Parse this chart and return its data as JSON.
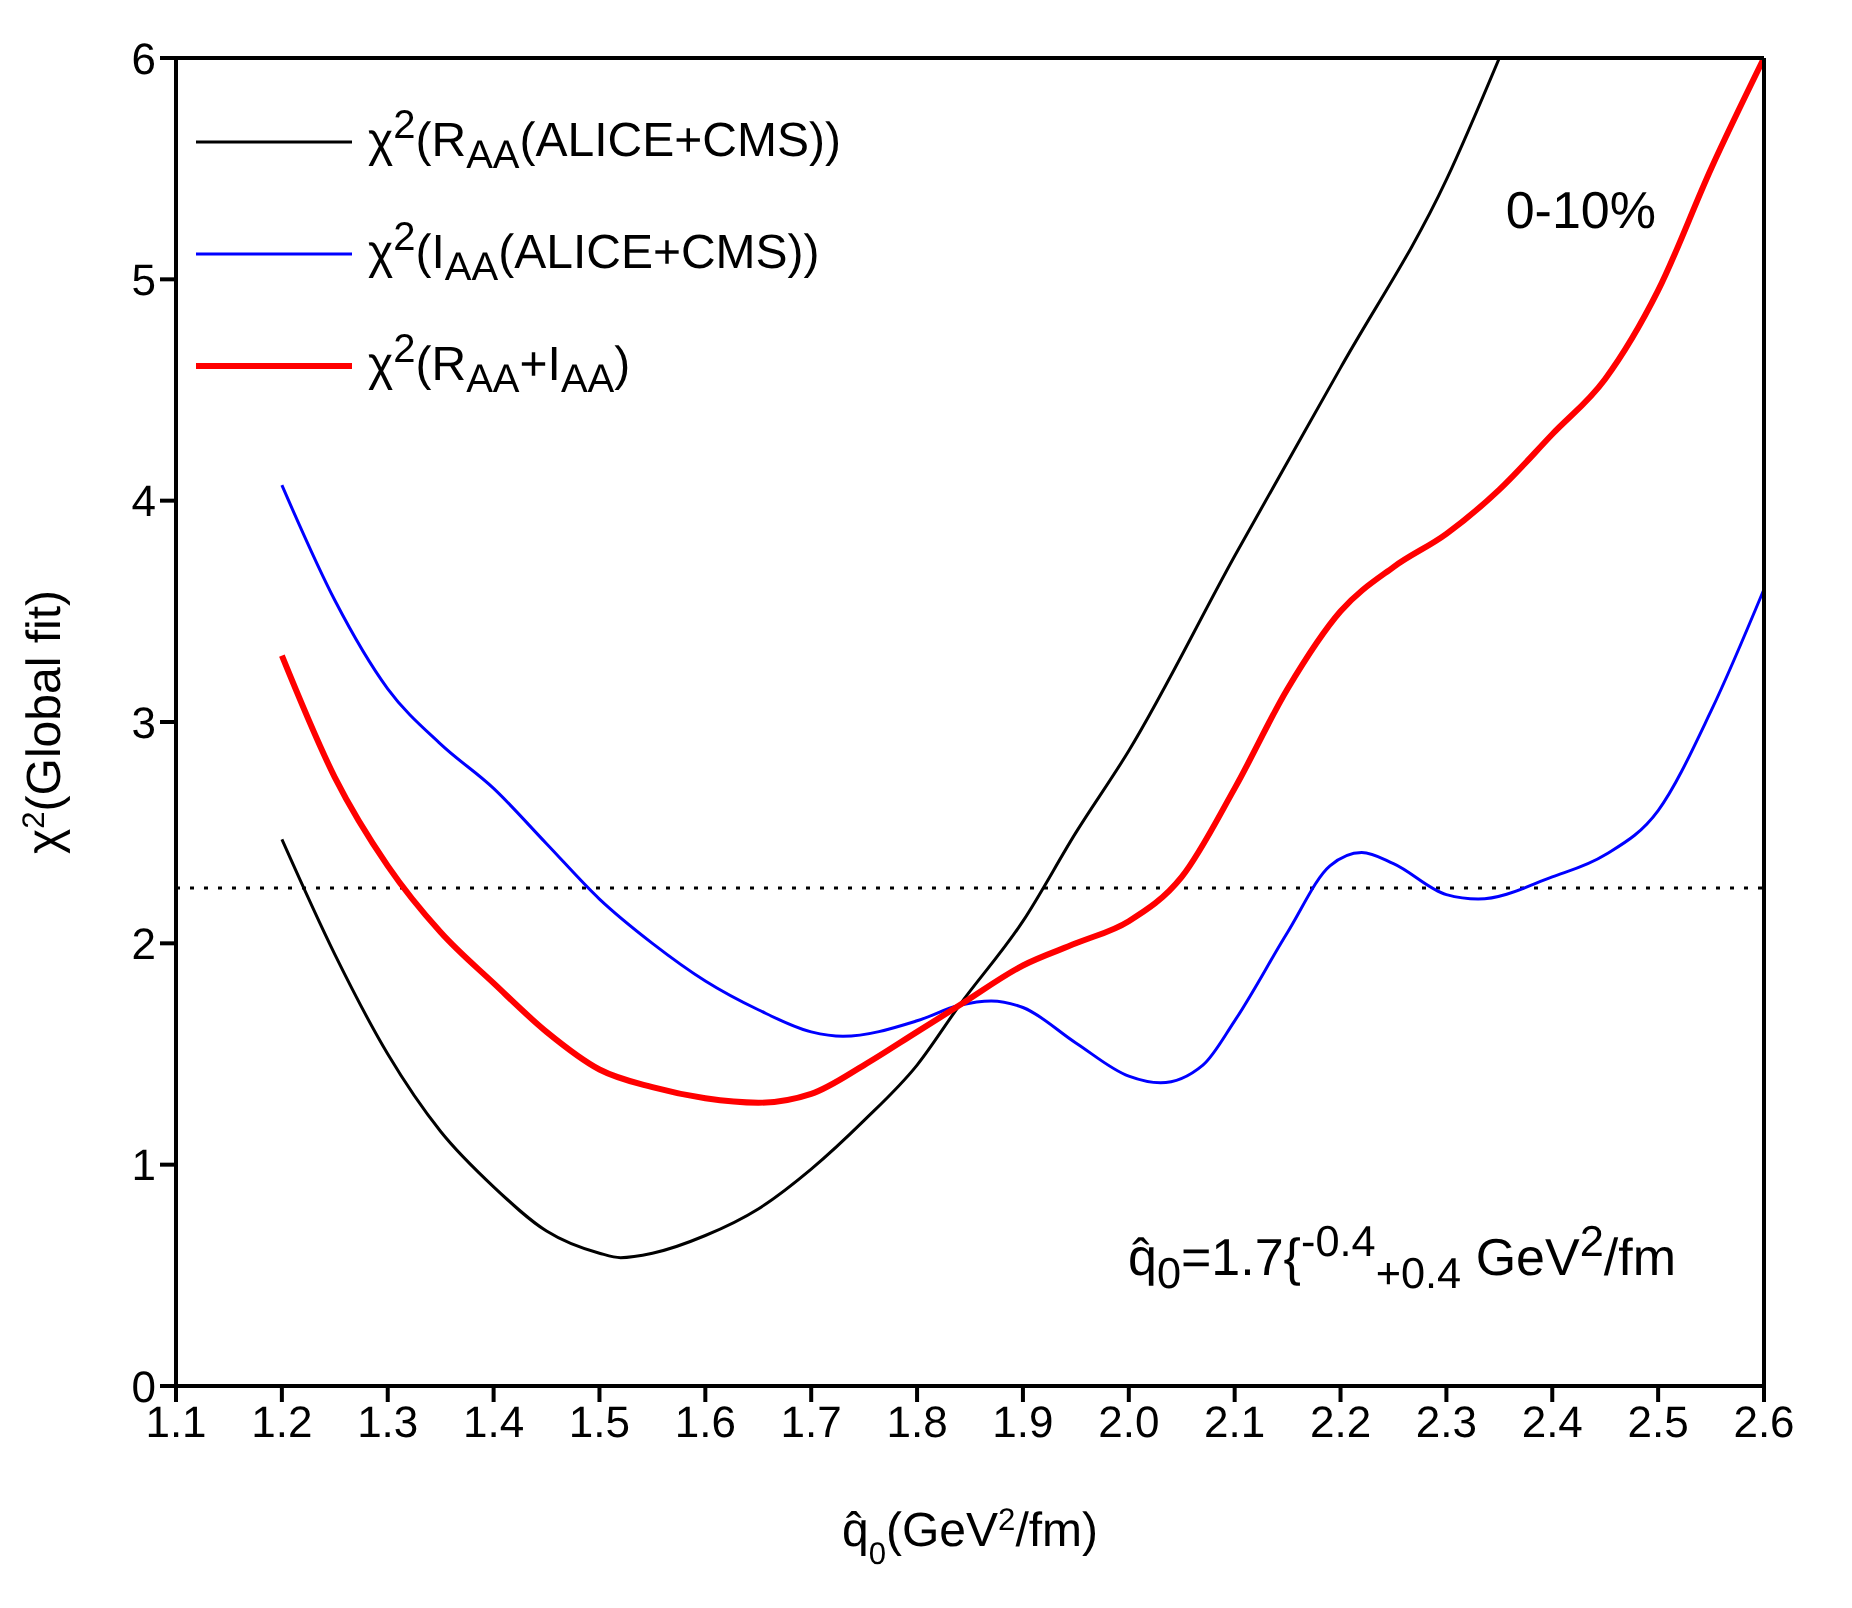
{
  "chart_data": {
    "type": "line",
    "xlabel": "q̂$_{0}$(GeV$^{2}$/fm)",
    "ylabel": "χ$^{2}$(Global fit)",
    "xlim": [
      1.1,
      2.6
    ],
    "xticks": [
      1.1,
      1.2,
      1.3,
      1.4,
      1.5,
      1.6,
      1.7,
      1.8,
      1.9,
      {
        "value": 2.0,
        "label": "2.0"
      },
      2.1,
      2.2,
      2.3,
      2.4,
      2.5,
      2.6
    ],
    "ylim": [
      0,
      6
    ],
    "yticks": [
      0,
      1,
      2,
      3,
      4,
      5,
      6
    ],
    "grid": false,
    "legend": "top left",
    "marker": "none",
    "line_style": "solid",
    "series": [
      {
        "name": "χ$^{2}$(R$_{AA}$(ALICE+CMS))",
        "color": "#000000",
        "x": [
          1.2,
          1.25,
          1.3,
          1.35,
          1.4,
          1.45,
          1.5,
          1.52,
          1.55,
          1.6,
          1.65,
          1.7,
          1.75,
          1.8,
          1.84,
          1.9,
          1.95,
          2.0,
          2.1,
          2.2,
          2.3,
          2.35
        ],
        "values": [
          2.47,
          1.95,
          1.5,
          1.15,
          0.9,
          0.7,
          0.6,
          0.58,
          0.6,
          0.68,
          0.8,
          0.98,
          1.2,
          1.45,
          1.72,
          2.1,
          2.5,
          2.87,
          3.75,
          4.6,
          5.45,
          6.0
        ]
      },
      {
        "name": "χ$^{2}$(I$_{AA}$(ALICE+CMS))",
        "color": "#0000ff",
        "x": [
          1.2,
          1.25,
          1.3,
          1.35,
          1.4,
          1.45,
          1.5,
          1.55,
          1.6,
          1.65,
          1.7,
          1.73,
          1.8,
          1.84,
          1.87,
          1.9,
          1.95,
          2.0,
          2.03,
          2.07,
          2.1,
          2.15,
          2.19,
          2.22,
          2.25,
          2.3,
          2.33,
          2.4,
          2.45,
          2.5,
          2.55,
          2.6
        ],
        "values": [
          4.07,
          3.55,
          3.15,
          2.9,
          2.7,
          2.45,
          2.2,
          2.0,
          1.83,
          1.7,
          1.6,
          1.58,
          1.65,
          1.72,
          1.74,
          1.71,
          1.55,
          1.4,
          1.37,
          1.45,
          1.65,
          2.05,
          2.35,
          2.41,
          2.36,
          2.22,
          2.2,
          2.3,
          2.4,
          2.6,
          3.05,
          3.6
        ]
      },
      {
        "name": "χ$^{2}$(R$_{AA}$+I$_{AA}$)",
        "color": "#ff0000",
        "x": [
          1.2,
          1.25,
          1.3,
          1.35,
          1.4,
          1.45,
          1.5,
          1.55,
          1.6,
          1.65,
          1.7,
          1.75,
          1.8,
          1.84,
          1.9,
          1.95,
          2.0,
          2.05,
          2.1,
          2.15,
          2.2,
          2.25,
          2.3,
          2.35,
          2.4,
          2.45,
          2.5,
          2.55,
          2.6
        ],
        "values": [
          3.3,
          2.75,
          2.35,
          2.05,
          1.82,
          1.6,
          1.43,
          1.35,
          1.3,
          1.28,
          1.32,
          1.45,
          1.6,
          1.72,
          1.9,
          2.0,
          2.1,
          2.3,
          2.7,
          3.15,
          3.5,
          3.7,
          3.85,
          4.05,
          4.3,
          4.55,
          4.95,
          5.5,
          6.0
        ]
      }
    ],
    "ref_lines": [
      {
        "axis": "y",
        "value": 2.25,
        "line_style": "dotted",
        "color": "#000000"
      }
    ],
    "annotations": [
      "0-10%",
      "q̂$_{0}$=1.7{$^{-0.4}$$_{+0.4}$ GeV$^{2}$/fm"
    ]
  }
}
